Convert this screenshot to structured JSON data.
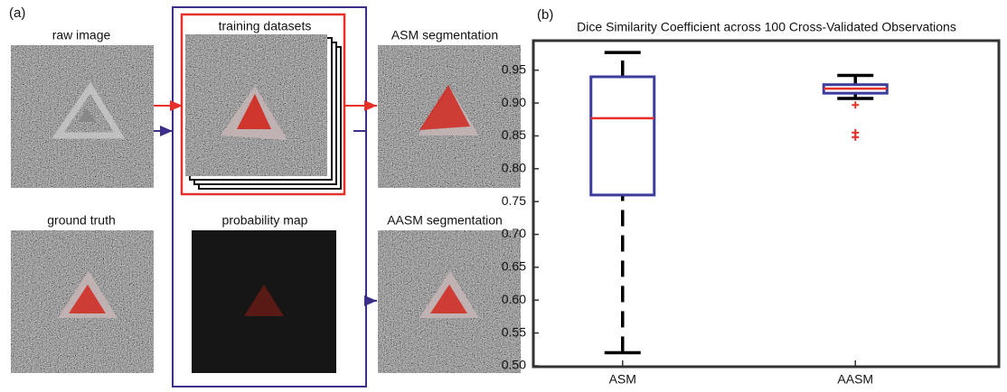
{
  "panel_a": {
    "label": "(a)",
    "raw_image": "raw image",
    "ground_truth": "ground truth",
    "training_datasets": "training datasets",
    "probability_map": "probability map",
    "asm_segmentation": "ASM segmentation",
    "aasm_segmentation": "AASM segmentation"
  },
  "panel_b_label": "(b)",
  "chart_data": {
    "type": "box",
    "title": "Dice Similarity Coefficient across 100 Cross-Validated Observations",
    "categories": [
      "ASM",
      "AASM"
    ],
    "boxes": [
      {
        "low": 0.52,
        "q1": 0.76,
        "median": 0.877,
        "q3": 0.94,
        "high": 0.977,
        "outliers": []
      },
      {
        "low": 0.907,
        "q1": 0.915,
        "median": 0.922,
        "q3": 0.928,
        "high": 0.942,
        "outliers": [
          0.897,
          0.855,
          0.848
        ]
      }
    ],
    "box_color": "#3c3c9c",
    "median_color": "#e8302a",
    "whisker_color": "#000000",
    "outlier_color": "#e8302a",
    "ylim": [
      0.5,
      0.995
    ],
    "yticks": [
      {
        "value": 0.5,
        "label": "0.50"
      },
      0.55,
      {
        "value": 0.6,
        "label": "0.60"
      },
      0.65,
      {
        "value": 0.7,
        "label": "0.70"
      },
      0.75,
      {
        "value": 0.8,
        "label": "0.80"
      },
      0.85,
      {
        "value": 0.9,
        "label": "0.90"
      },
      0.95
    ]
  }
}
